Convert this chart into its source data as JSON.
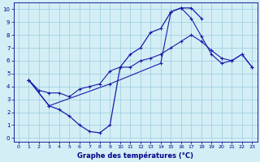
{
  "xlabel": "Graphe des températures (°C)",
  "xlim": [
    -0.5,
    23.5
  ],
  "ylim": [
    -0.3,
    10.5
  ],
  "xticks": [
    0,
    1,
    2,
    3,
    4,
    5,
    6,
    7,
    8,
    9,
    10,
    11,
    12,
    13,
    14,
    15,
    16,
    17,
    18,
    19,
    20,
    21,
    22,
    23
  ],
  "yticks": [
    0,
    1,
    2,
    3,
    4,
    5,
    6,
    7,
    8,
    9,
    10
  ],
  "background_color": "#d4eef5",
  "line_color": "#1a1aaa",
  "grid_color": "#99ccdd",
  "curve1_x": [
    1,
    3,
    4,
    5,
    6,
    7,
    8,
    9,
    10,
    11,
    12,
    13,
    14,
    15,
    16,
    17,
    18
  ],
  "curve1_y": [
    4.5,
    2.5,
    2.2,
    1.7,
    1.0,
    0.5,
    0.4,
    1.0,
    5.5,
    6.5,
    7.0,
    8.2,
    8.5,
    9.8,
    10.1,
    10.1,
    9.3
  ],
  "curve2_x": [
    1,
    2,
    3,
    4,
    5,
    6,
    7,
    8,
    9,
    10,
    11,
    12,
    13,
    14,
    15,
    16,
    17,
    18,
    19,
    20,
    21,
    22,
    23
  ],
  "curve2_y": [
    4.5,
    3.7,
    3.5,
    3.5,
    3.2,
    3.8,
    4.0,
    4.2,
    5.2,
    5.5,
    5.5,
    6.0,
    6.2,
    6.5,
    7.0,
    7.5,
    8.0,
    7.5,
    6.8,
    6.2,
    6.0,
    6.5,
    5.5
  ],
  "curve3_x": [
    1,
    3,
    9,
    14,
    15,
    16,
    17,
    18,
    19,
    20,
    21,
    22,
    23
  ],
  "curve3_y": [
    4.5,
    2.5,
    4.2,
    5.8,
    9.8,
    10.1,
    9.3,
    7.9,
    6.5,
    5.8,
    6.0,
    6.5,
    5.5
  ]
}
